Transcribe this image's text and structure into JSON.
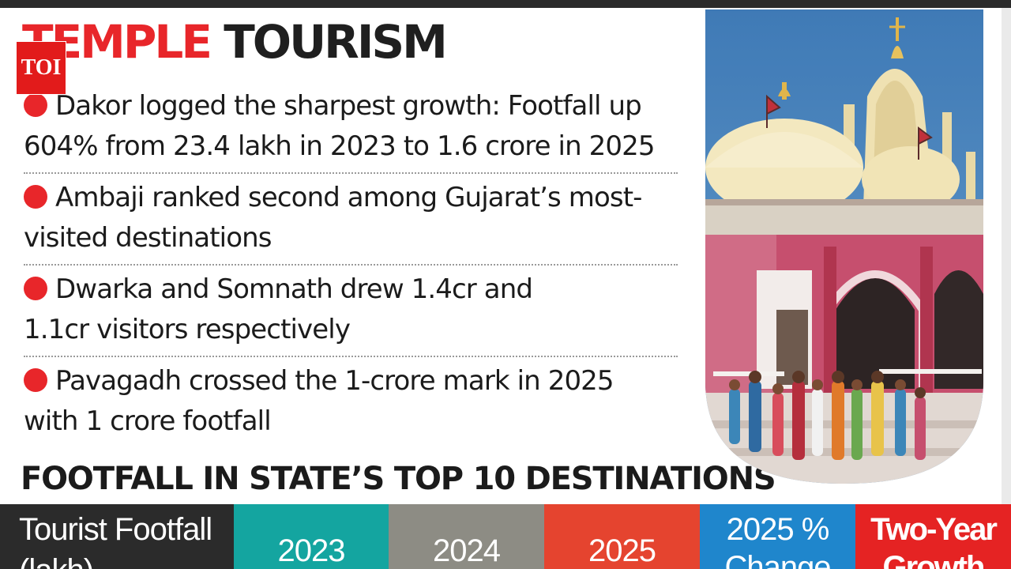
{
  "logo": {
    "text": "TOI"
  },
  "headline": {
    "word1": "TEMPLE",
    "word2": "TOURISM"
  },
  "bullets": [
    {
      "line1": "Dakor logged the sharpest growth: Footfall up",
      "line2": "604% from 23.4 lakh in 2023 to 1.6 crore in 2025"
    },
    {
      "line1": "Ambaji ranked second among Gujarat’s most-",
      "line2": "visited destinations"
    },
    {
      "line1": "Dwarka and Somnath drew 1.4cr and",
      "line2": "1.1cr visitors respectively"
    },
    {
      "line1": "Pavagadh crossed the 1-crore mark in 2025",
      "line2": "with 1 crore footfall"
    }
  ],
  "subhead": "FOOTFALL IN STATE’S TOP 10 DESTINATIONS",
  "table": {
    "col_label_line1": "Tourist Footfall",
    "col_label_line2": "(lakh)",
    "col_2023": "2023",
    "col_2024": "2024",
    "col_2025": "2025",
    "col_change_line1": "2025 %",
    "col_change_line2": "Change",
    "col_growth_line1": "Two-Year",
    "col_growth_line2": "Growth"
  },
  "colors": {
    "accent_red": "#e8262a",
    "label_col": "#2b2b2b",
    "col_2023": "#14a5a0",
    "col_2024": "#8d8c84",
    "col_2025": "#e5442f",
    "col_change": "#1f86cc",
    "col_growth": "#e52323"
  }
}
